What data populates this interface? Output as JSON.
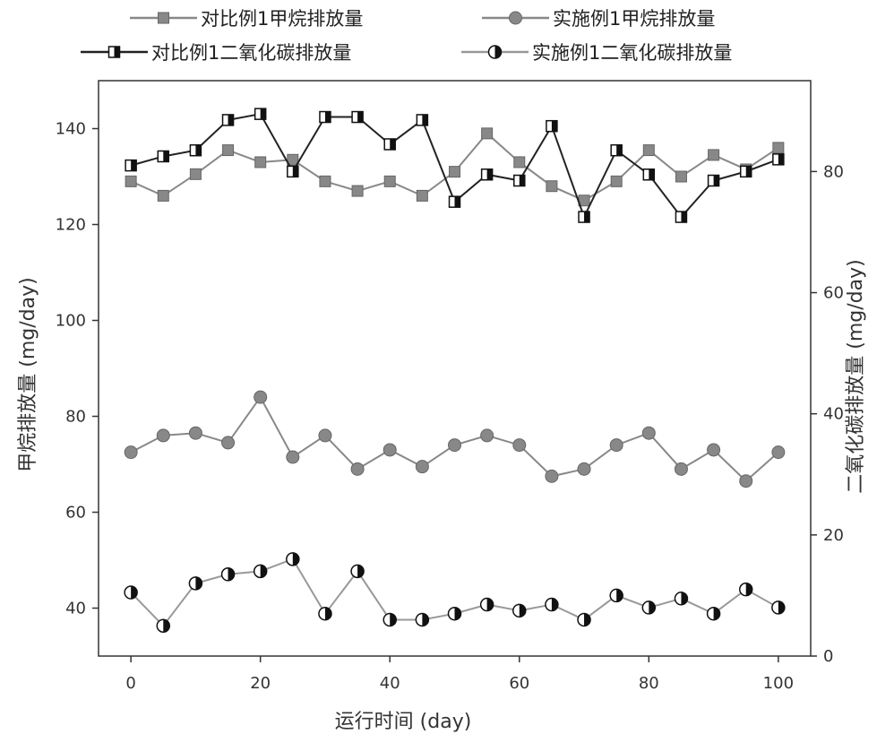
{
  "chart_data": {
    "type": "line",
    "x": [
      0,
      5,
      10,
      15,
      20,
      25,
      30,
      35,
      40,
      45,
      50,
      55,
      60,
      65,
      70,
      75,
      80,
      85,
      90,
      95,
      100
    ],
    "xlabel": "运行时间 (day)",
    "ylabel_left": "甲烷排放量 (mg/day)",
    "ylabel_right": "二氧化碳排放量 (mg/day)",
    "xlim": [
      -5,
      105
    ],
    "ylim_left": [
      30,
      150
    ],
    "ylim_right": [
      0,
      95
    ],
    "xticks": [
      0,
      20,
      40,
      60,
      80,
      100
    ],
    "yticks_left": [
      40,
      60,
      80,
      100,
      120,
      140
    ],
    "yticks_right": [
      0,
      20,
      40,
      60,
      80
    ],
    "grid": false,
    "legend_position": "top",
    "series": [
      {
        "name": "对比例1甲烷排放量",
        "axis": "left",
        "marker": "square-filled",
        "color": "#888888",
        "values": [
          129,
          126,
          130.5,
          135.5,
          133,
          133.5,
          129,
          127,
          129,
          126,
          131,
          139,
          133,
          128,
          125,
          129,
          135.5,
          130,
          134.5,
          131.5,
          136
        ]
      },
      {
        "name": "实施例1甲烷排放量",
        "axis": "left",
        "marker": "circle-filled",
        "color": "#888888",
        "values": [
          72.5,
          76,
          76.5,
          74.5,
          84,
          71.5,
          76,
          69,
          73,
          69.5,
          74,
          76,
          74,
          67.5,
          69,
          74,
          76.5,
          69,
          73,
          66.5,
          72.5
        ]
      },
      {
        "name": "对比例1二氧化碳排放量",
        "axis": "right",
        "marker": "square-half",
        "color": "#222222",
        "values": [
          81,
          82.5,
          83.5,
          88.5,
          89.5,
          80,
          89,
          89,
          84.5,
          88.5,
          75,
          79.5,
          78.5,
          87.5,
          72.5,
          83.5,
          79.5,
          72.5,
          78.5,
          80,
          82
        ]
      },
      {
        "name": "实施例1二氧化碳排放量",
        "axis": "right",
        "marker": "circle-half",
        "color": "#999999",
        "values": [
          10.5,
          5,
          12,
          13.5,
          14,
          16,
          7,
          14,
          6,
          6,
          7,
          8.5,
          7.5,
          8.5,
          6,
          10,
          8,
          9.5,
          7,
          11,
          8
        ]
      }
    ]
  }
}
